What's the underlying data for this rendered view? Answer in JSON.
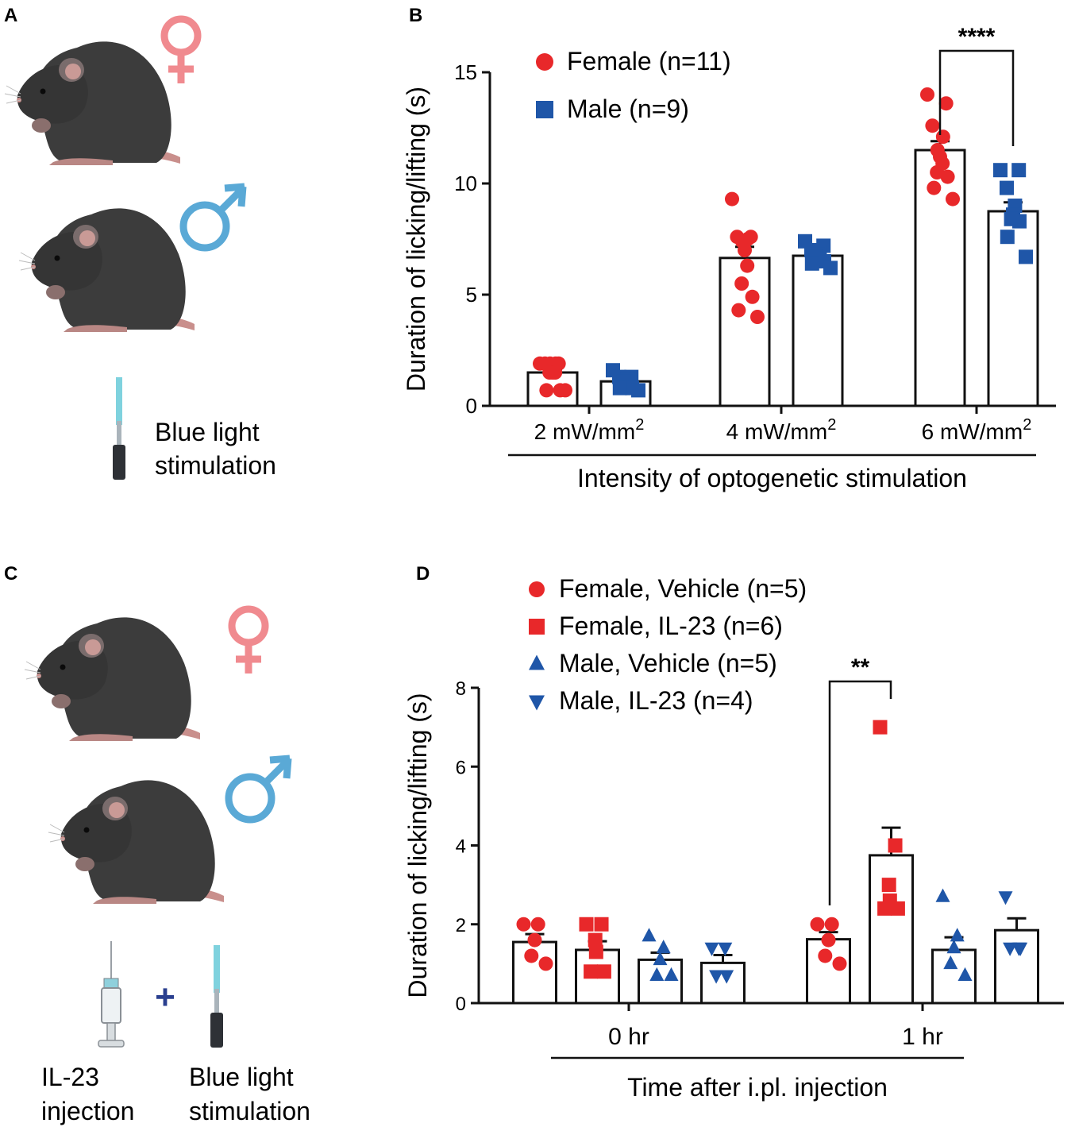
{
  "panels": {
    "a": {
      "letter": "A",
      "stim_label_line1": "Blue light",
      "stim_label_line2": "stimulation",
      "female_icon": "female-symbol-icon",
      "male_icon": "male-symbol-icon"
    },
    "c": {
      "letter": "C",
      "injection_line1": "IL-23",
      "injection_line2": "injection",
      "plus": "+",
      "stim_label_line1": "Blue light",
      "stim_label_line2": "stimulation"
    }
  },
  "colors": {
    "female": "#e8282a",
    "male": "#1f56a8",
    "female_symbol": "#f08a8f",
    "male_symbol": "#5aa9d6",
    "mouse": "#3a3a3a"
  },
  "chart_data": [
    {
      "panel": "B",
      "type": "bar",
      "ylabel": "Duration of licking/lifting (s)",
      "xlabel": "Intensity of optogenetic stimulation",
      "ylim": [
        0,
        15
      ],
      "yticks": [
        0,
        5,
        10,
        15
      ],
      "categories": [
        {
          "base": "2 mW/mm",
          "sup": "2"
        },
        {
          "base": "4 mW/mm",
          "sup": "2"
        },
        {
          "base": "6 mW/mm",
          "sup": "2"
        }
      ],
      "series": [
        {
          "name": "Female (n=11)",
          "marker": "circle",
          "color": "#e8282a",
          "means": [
            1.5,
            6.65,
            11.5
          ],
          "sems": [
            0.15,
            0.5,
            0.4
          ],
          "points": [
            [
              1.9,
              1.9,
              1.9,
              1.9,
              1.9,
              1.5,
              1.5,
              1.5,
              0.7,
              0.7,
              0.7
            ],
            [
              9.3,
              7.6,
              7.6,
              7.5,
              7.4,
              7.0,
              6.3,
              5.5,
              4.9,
              4.3,
              4.0
            ],
            [
              14.0,
              13.6,
              12.6,
              12.1,
              11.5,
              11.2,
              10.9,
              10.5,
              10.3,
              9.8,
              9.3
            ]
          ]
        },
        {
          "name": "Male (n=9)",
          "marker": "square",
          "color": "#1f56a8",
          "means": [
            1.1,
            6.75,
            8.75
          ],
          "sems": [
            0.12,
            0.22,
            0.4
          ],
          "points": [
            [
              1.6,
              1.3,
              1.3,
              1.2,
              1.1,
              1.1,
              0.8,
              0.8,
              0.7
            ],
            [
              7.4,
              7.2,
              7.0,
              6.9,
              6.8,
              6.7,
              6.5,
              6.4,
              6.2
            ],
            [
              10.6,
              10.6,
              9.8,
              9.0,
              8.6,
              8.4,
              8.3,
              7.6,
              6.7
            ]
          ]
        }
      ],
      "significance": {
        "label": "****",
        "from": "Female, 6 mW/mm2",
        "to": "Male, 6 mW/mm2"
      }
    },
    {
      "panel": "D",
      "type": "bar",
      "ylabel": "Duration of licking/lifting (s)",
      "xlabel": "Time after i.pl. injection",
      "ylim": [
        0,
        8
      ],
      "yticks": [
        0,
        2,
        4,
        6,
        8
      ],
      "categories": [
        "0 hr",
        "1 hr"
      ],
      "series": [
        {
          "name": "Female, Vehicle (n=5)",
          "marker": "circle",
          "color": "#e8282a",
          "means": [
            1.55,
            1.62
          ],
          "sems": [
            0.2,
            0.18
          ],
          "points": [
            [
              2.0,
              2.0,
              1.6,
              1.2,
              1.0
            ],
            [
              2.0,
              2.0,
              1.6,
              1.2,
              1.0
            ]
          ]
        },
        {
          "name": "Female, IL-23 (n=6)",
          "marker": "square",
          "color": "#e8282a",
          "means": [
            1.35,
            3.75
          ],
          "sems": [
            0.22,
            0.7
          ],
          "points": [
            [
              2.0,
              2.0,
              1.6,
              1.3,
              0.8,
              0.8
            ],
            [
              7.0,
              4.0,
              3.0,
              2.6,
              2.4,
              2.4
            ]
          ]
        },
        {
          "name": "Male, Vehicle (n=5)",
          "marker": "triangle-up",
          "color": "#1f56a8",
          "means": [
            1.1,
            1.35
          ],
          "sems": [
            0.18,
            0.32
          ],
          "points": [
            [
              1.7,
              1.4,
              1.1,
              0.7,
              0.7
            ],
            [
              2.7,
              1.7,
              1.4,
              1.0,
              0.7
            ]
          ]
        },
        {
          "name": "Male, IL-23 (n=4)",
          "marker": "triangle-down",
          "color": "#1f56a8",
          "means": [
            1.02,
            1.85
          ],
          "sems": [
            0.2,
            0.3
          ],
          "points": [
            [
              1.4,
              1.4,
              0.7,
              0.7
            ],
            [
              2.7,
              1.4,
              1.4,
              1.4
            ]
          ]
        }
      ],
      "significance": {
        "label": "**",
        "from": "Female, Vehicle, 1 hr",
        "to": "Female, IL-23, 1 hr"
      }
    }
  ]
}
